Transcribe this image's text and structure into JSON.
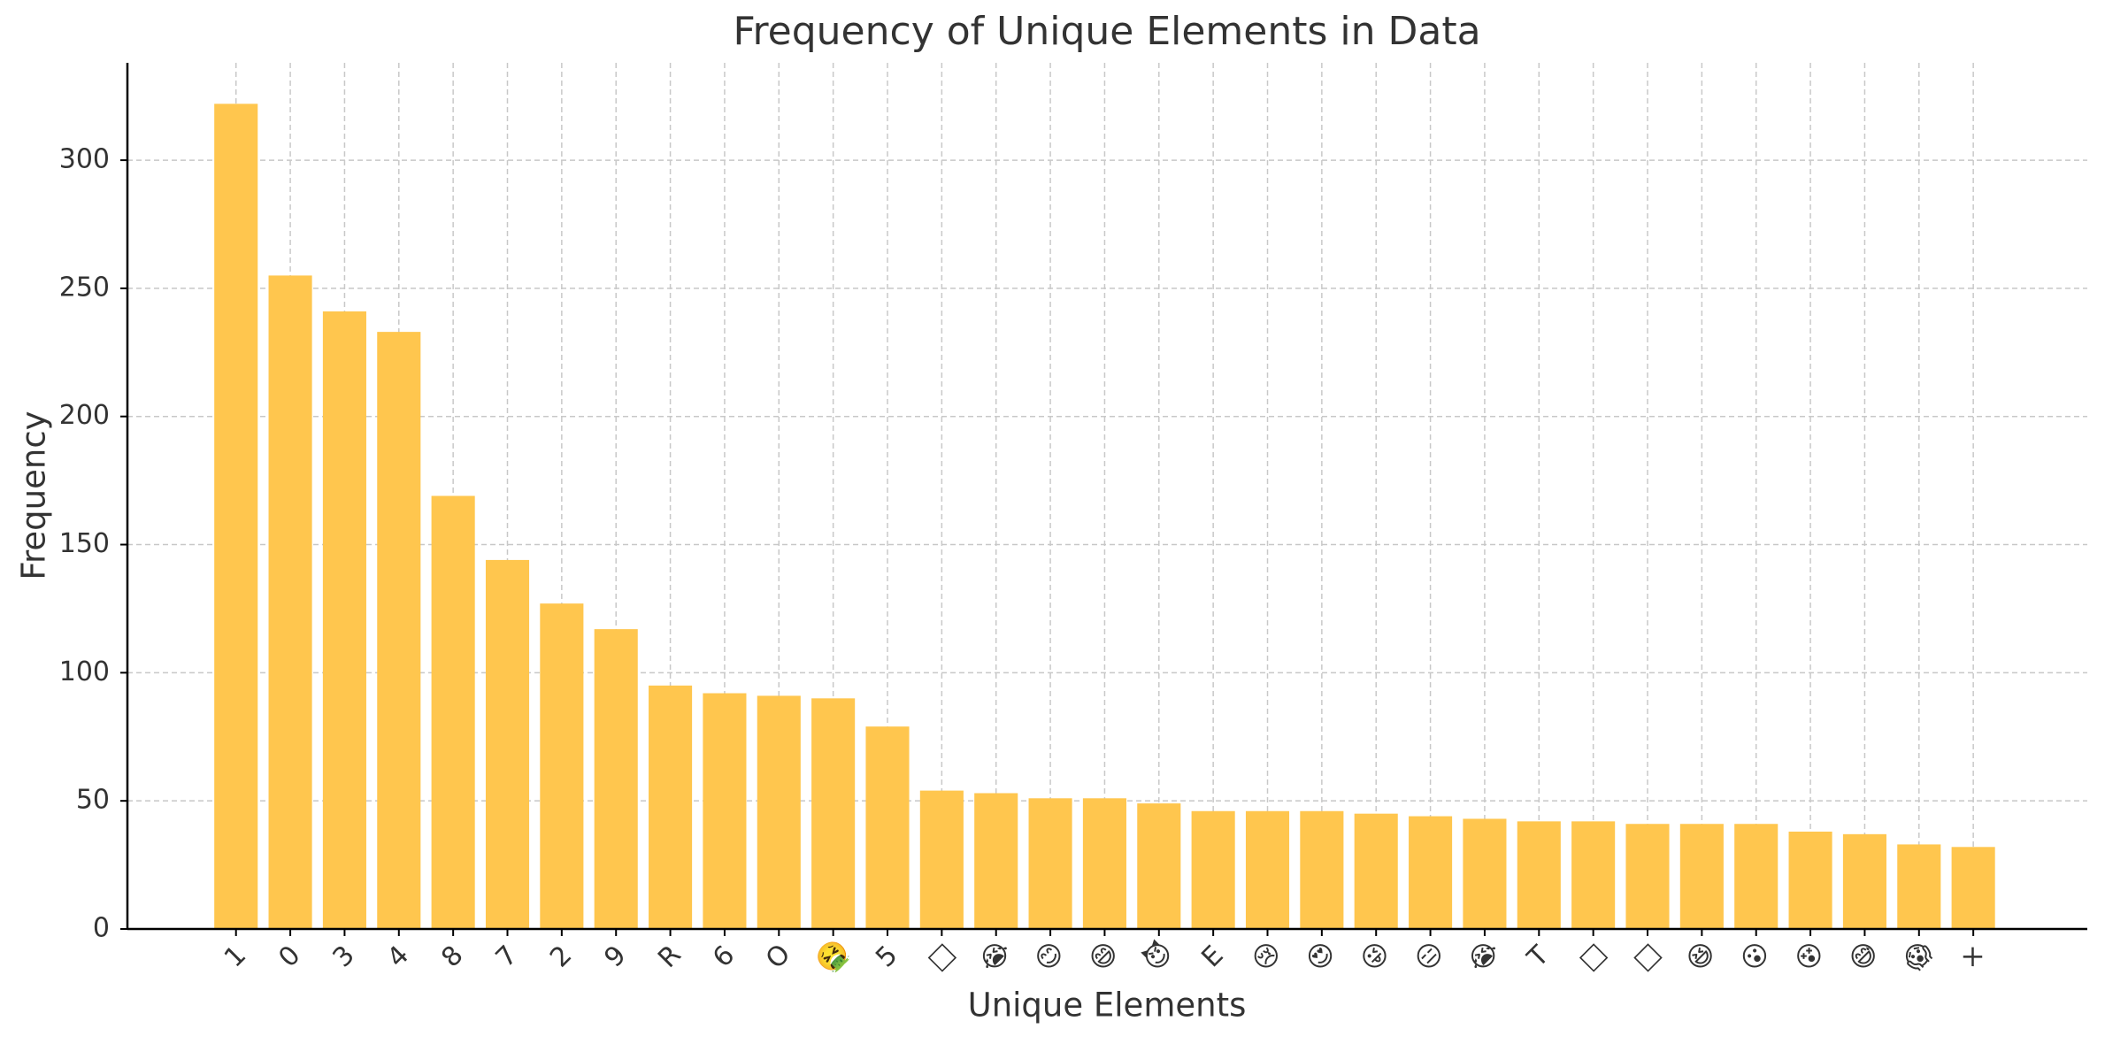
{
  "chart_data": {
    "type": "bar",
    "title": "Frequency of Unique Elements in Data",
    "x_label": "Unique Elements",
    "y_label": "Frequency",
    "categories": [
      "1",
      "0",
      "3",
      "4",
      "8",
      "7",
      "2",
      "9",
      "R",
      "6",
      "O",
      "🤮",
      "5",
      "□",
      "😭",
      "😊",
      "😄",
      "😈",
      "E",
      "😢",
      "😍",
      "😜",
      "😑",
      "😭",
      "T",
      "□",
      "□",
      "😆",
      "😮",
      "😵",
      "😅",
      "😱",
      "×"
    ],
    "values": [
      322,
      255,
      241,
      233,
      169,
      144,
      127,
      117,
      95,
      92,
      91,
      90,
      79,
      54,
      53,
      51,
      51,
      49,
      46,
      46,
      46,
      45,
      44,
      43,
      42,
      42,
      41,
      41,
      41,
      38,
      37,
      33,
      32
    ],
    "color": "#ffc64e",
    "ylim": [
      0,
      338
    ],
    "yticks": [
      0,
      50,
      100,
      150,
      200,
      250,
      300
    ],
    "grid": true
  }
}
